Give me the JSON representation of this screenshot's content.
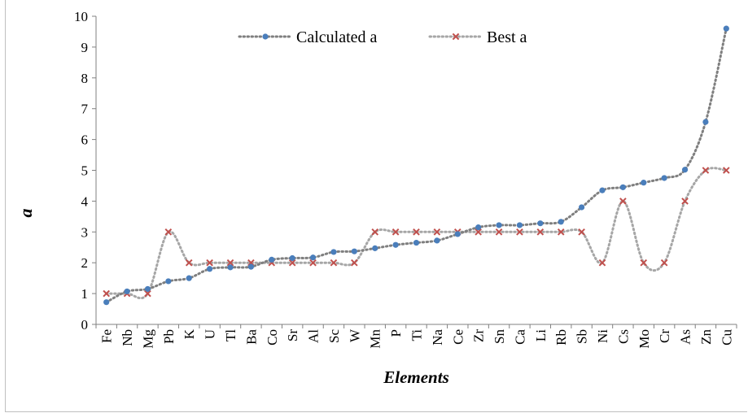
{
  "chart_data": {
    "type": "line",
    "title": "",
    "xlabel": "Elements",
    "ylabel": "a",
    "ylim": [
      0,
      10
    ],
    "yticks": [
      "0",
      "1",
      "2",
      "3",
      "4",
      "5",
      "6",
      "7",
      "8",
      "9",
      "10"
    ],
    "categories": [
      "Fe",
      "Nb",
      "Mg",
      "Pb",
      "K",
      "U",
      "Tl",
      "Ba",
      "Co",
      "Sr",
      "Al",
      "Sc",
      "W",
      "Mn",
      "P",
      "Ti",
      "Na",
      "Ce",
      "Zr",
      "Sn",
      "Ca",
      "Li",
      "Rb",
      "Sb",
      "Ni",
      "Cs",
      "Mo",
      "Cr",
      "As",
      "Zn",
      "Cu"
    ],
    "grid": false,
    "legend_position": "top",
    "series": [
      {
        "name": "Calculated a",
        "color": "#4a7ebb",
        "line_color": "#7f7f7f",
        "marker": "circle",
        "values": [
          0.72,
          1.07,
          1.15,
          1.4,
          1.5,
          1.8,
          1.85,
          1.87,
          2.1,
          2.15,
          2.17,
          2.35,
          2.37,
          2.47,
          2.58,
          2.65,
          2.72,
          2.93,
          3.15,
          3.22,
          3.22,
          3.28,
          3.33,
          3.8,
          4.35,
          4.45,
          4.6,
          4.75,
          5.02,
          6.57,
          9.6
        ]
      },
      {
        "name": "Best a",
        "color": "#c0504d",
        "line_color": "#a6a6a6",
        "marker": "x",
        "values": [
          1,
          1,
          1,
          3,
          2,
          2,
          2,
          2,
          2,
          2,
          2,
          2,
          2,
          3,
          3,
          3,
          3,
          3,
          3,
          3,
          3,
          3,
          3,
          3,
          2,
          4,
          2,
          2,
          4,
          5,
          5
        ]
      }
    ]
  }
}
